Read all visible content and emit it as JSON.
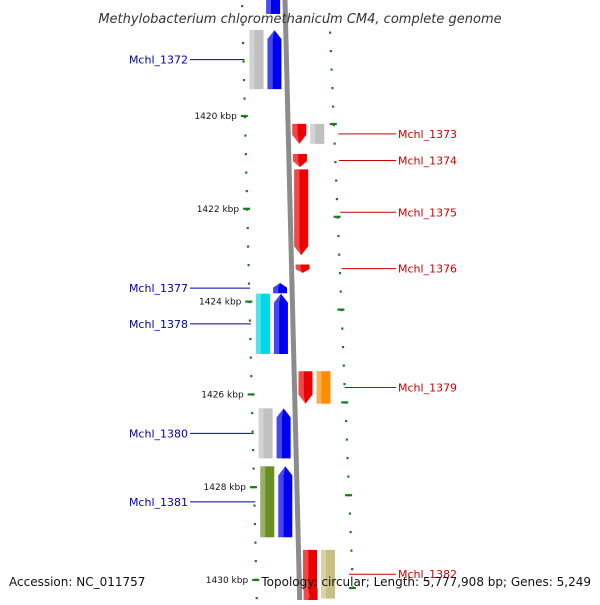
{
  "title": "Methylobacterium chloromethanicum CM4, complete genome",
  "footer": {
    "accession": "Accession: NC_011757",
    "topology": "Topology: circular; Length: 5,777,908 bp; Genes: 5,249"
  },
  "colors": {
    "backbone": "#8c8c8c",
    "forward_label": "#cc0000",
    "reverse_label": "#0000aa",
    "tick": "#1e7a1e",
    "blue": "#0000ee",
    "red": "#ee0000",
    "cyan": "#00d8e8",
    "gray": "#c0c0c0",
    "olive": "#6b8e23",
    "orange": "#ff8c00",
    "khaki": "#c8c080"
  },
  "scale": {
    "unit": "kbp",
    "ticks": [
      {
        "kbp": 1420,
        "label": "1420 kbp"
      },
      {
        "kbp": 1422,
        "label": "1422 kbp"
      },
      {
        "kbp": 1424,
        "label": "1424 kbp"
      },
      {
        "kbp": 1426,
        "label": "1426 kbp"
      },
      {
        "kbp": 1428,
        "label": "1428 kbp"
      },
      {
        "kbp": 1430,
        "label": "1430 kbp"
      }
    ]
  },
  "genes": [
    {
      "id": "Mchl_1372",
      "label": "Mchl_1372",
      "strand": "-",
      "start": 1418.15,
      "end": 1419.42,
      "color": "blue",
      "labeled": true
    },
    {
      "id": "Mchl_1373",
      "label": "Mchl_1373",
      "strand": "+",
      "start": 1420.17,
      "end": 1420.6,
      "color": "red",
      "labeled": true
    },
    {
      "id": "Mchl_1374",
      "label": "Mchl_1374",
      "strand": "+",
      "start": 1420.82,
      "end": 1421.1,
      "color": "red",
      "labeled": true
    },
    {
      "id": "Mchl_1375",
      "label": "Mchl_1375",
      "strand": "+",
      "start": 1421.15,
      "end": 1423.0,
      "color": "red",
      "labeled": true
    },
    {
      "id": "Mchl_1376",
      "label": "Mchl_1376",
      "strand": "+",
      "start": 1423.2,
      "end": 1423.38,
      "color": "red",
      "labeled": true
    },
    {
      "id": "Mchl_1377",
      "label": "Mchl_1377",
      "strand": "-",
      "start": 1423.6,
      "end": 1423.82,
      "color": "blue",
      "labeled": true
    },
    {
      "id": "Mchl_1378",
      "label": "Mchl_1378",
      "strand": "-",
      "start": 1423.83,
      "end": 1425.13,
      "color": "blue",
      "labeled": true
    },
    {
      "id": "Mchl_1379",
      "label": "Mchl_1379",
      "strand": "+",
      "start": 1425.5,
      "end": 1426.2,
      "color": "red",
      "labeled": true
    },
    {
      "id": "Mchl_1380",
      "label": "Mchl_1380",
      "strand": "-",
      "start": 1426.3,
      "end": 1427.38,
      "color": "blue",
      "labeled": true
    },
    {
      "id": "Mchl_1381",
      "label": "Mchl_1381",
      "strand": "-",
      "start": 1427.55,
      "end": 1429.08,
      "color": "blue",
      "labeled": true
    },
    {
      "id": "Mchl_1382",
      "label": "Mchl_1382",
      "strand": "+",
      "start": 1429.35,
      "end": 1430.4,
      "color": "red",
      "labeled": true
    }
  ],
  "features": [
    {
      "strand": "-",
      "start": 1418.15,
      "end": 1419.42,
      "color": "cyan"
    },
    {
      "strand": "-",
      "start": 1418.15,
      "end": 1419.42,
      "color": "gray"
    },
    {
      "strand": "+",
      "start": 1420.17,
      "end": 1420.6,
      "color": "gray"
    },
    {
      "strand": "-",
      "start": 1423.83,
      "end": 1425.13,
      "color": "cyan"
    },
    {
      "strand": "+",
      "start": 1425.5,
      "end": 1426.2,
      "color": "orange"
    },
    {
      "strand": "-",
      "start": 1426.3,
      "end": 1427.38,
      "color": "gray"
    },
    {
      "strand": "-",
      "start": 1427.55,
      "end": 1429.08,
      "color": "olive"
    },
    {
      "strand": "+",
      "start": 1429.35,
      "end": 1430.4,
      "color": "khaki"
    }
  ]
}
